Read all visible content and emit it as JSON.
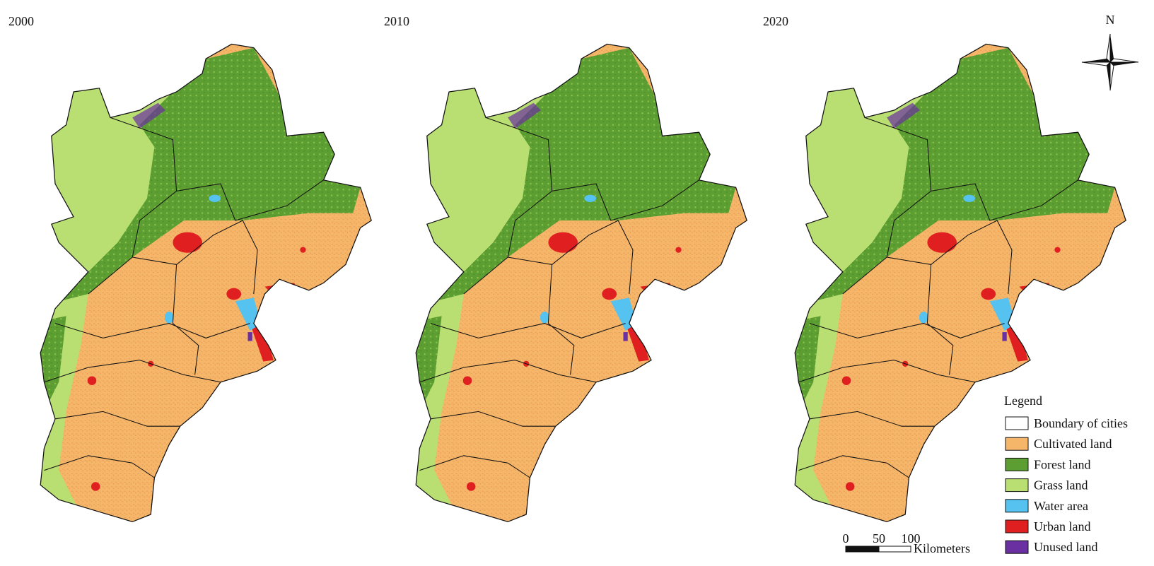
{
  "panels": [
    {
      "year": "2000"
    },
    {
      "year": "2010"
    },
    {
      "year": "2020"
    }
  ],
  "north_label": "N",
  "legend": {
    "title": "Legend",
    "items": [
      {
        "label": "Boundary of cities",
        "color": "#ffffff"
      },
      {
        "label": "Cultivated land",
        "color": "#f5b66a"
      },
      {
        "label": "Forest land",
        "color": "#5c9e31"
      },
      {
        "label": "Grass land",
        "color": "#b9df72"
      },
      {
        "label": "Water area",
        "color": "#55c2f0"
      },
      {
        "label": "Urban land",
        "color": "#e02020"
      },
      {
        "label": "Unused land",
        "color": "#6a2fa0"
      }
    ]
  },
  "scale_bar": {
    "ticks": [
      "0",
      "50",
      "100"
    ],
    "unit": "Kilometers"
  }
}
